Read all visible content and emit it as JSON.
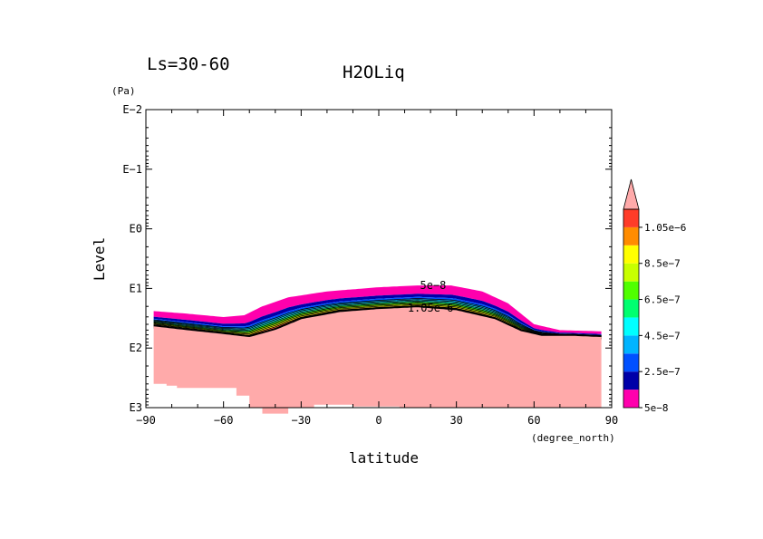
{
  "chart_data": {
    "type": "contour",
    "title": "H2OLiq",
    "season_label": "Ls=30-60",
    "xlabel": "latitude",
    "xunits": "(degree_north)",
    "ylabel": "Level",
    "yunits": "(Pa)",
    "xlim": [
      -90,
      90
    ],
    "ylim_log10": [
      -2,
      3
    ],
    "x_ticks": [
      -90,
      -60,
      -30,
      0,
      30,
      60,
      90
    ],
    "x_tick_labels": [
      "−90",
      "−60",
      "−30",
      "0",
      "30",
      "60",
      "90"
    ],
    "y_ticks_log10": [
      -2,
      -1,
      0,
      1,
      2,
      3
    ],
    "y_tick_labels": [
      "E−2",
      "E−1",
      "E0",
      "E1",
      "E2",
      "E3"
    ],
    "colorbar": {
      "levels": [
        5e-08,
        1.5e-07,
        2.5e-07,
        3.5e-07,
        4.5e-07,
        5.5e-07,
        6.5e-07,
        7.5e-07,
        8.5e-07,
        9.5e-07,
        1.05e-06
      ],
      "colors": [
        "#ff00ad",
        "#0000a8",
        "#0050ff",
        "#00b4ff",
        "#00ffff",
        "#00ff70",
        "#50ff00",
        "#c8ff00",
        "#ffff00",
        "#ff8c00",
        "#ff3c28"
      ],
      "over_color": "#ffaaaa",
      "labels": [
        "5e−8",
        "2.5e−7",
        "4.5e−7",
        "6.5e−7",
        "8.5e−7",
        "1.05e−6"
      ],
      "label_levels": [
        5e-08,
        2.5e-07,
        4.5e-07,
        6.5e-07,
        8.5e-07,
        1.05e-06
      ]
    },
    "cloud_top_log10": [
      [
        -87,
        1.38
      ],
      [
        -75,
        1.42
      ],
      [
        -60,
        1.48
      ],
      [
        -52,
        1.45
      ],
      [
        -45,
        1.3
      ],
      [
        -35,
        1.15
      ],
      [
        -20,
        1.05
      ],
      [
        0,
        0.98
      ],
      [
        15,
        0.95
      ],
      [
        28,
        0.95
      ],
      [
        40,
        1.05
      ],
      [
        50,
        1.25
      ],
      [
        60,
        1.6
      ],
      [
        70,
        1.7
      ],
      [
        86,
        1.72
      ]
    ],
    "cloud_base_log10": [
      [
        -87,
        1.65
      ],
      [
        -75,
        1.72
      ],
      [
        -60,
        1.8
      ],
      [
        -50,
        1.85
      ],
      [
        -40,
        1.72
      ],
      [
        -30,
        1.55
      ],
      [
        -15,
        1.42
      ],
      [
        0,
        1.38
      ],
      [
        15,
        1.35
      ],
      [
        30,
        1.4
      ],
      [
        45,
        1.55
      ],
      [
        55,
        1.75
      ],
      [
        63,
        1.82
      ],
      [
        75,
        1.82
      ],
      [
        86,
        1.85
      ]
    ],
    "surface_mask_top_log10": [
      [
        -87,
        1.62
      ],
      [
        -75,
        1.68
      ],
      [
        -60,
        1.75
      ],
      [
        -50,
        1.8
      ],
      [
        -40,
        1.68
      ],
      [
        -30,
        1.5
      ],
      [
        -15,
        1.38
      ],
      [
        0,
        1.33
      ],
      [
        15,
        1.3
      ],
      [
        30,
        1.35
      ],
      [
        45,
        1.5
      ],
      [
        55,
        1.7
      ],
      [
        63,
        1.78
      ],
      [
        75,
        1.78
      ],
      [
        86,
        1.8
      ]
    ],
    "surface_mask_bottom_log10": [
      [
        -87,
        2.6
      ],
      [
        -82,
        2.6
      ],
      [
        -82,
        2.63
      ],
      [
        -78,
        2.63
      ],
      [
        -78,
        2.67
      ],
      [
        -55,
        2.67
      ],
      [
        -55,
        2.8
      ],
      [
        -50,
        2.8
      ],
      [
        -50,
        3.0
      ],
      [
        -45,
        3.0
      ],
      [
        -45,
        3.1
      ],
      [
        -35,
        3.1
      ],
      [
        -35,
        3.0
      ],
      [
        -25,
        3.0
      ],
      [
        -25,
        2.95
      ],
      [
        -10,
        2.95
      ],
      [
        -10,
        2.98
      ],
      [
        8,
        2.98
      ],
      [
        8,
        3.0
      ],
      [
        86,
        3.0
      ]
    ],
    "contour_labels": [
      {
        "text": "5e−8",
        "lat": 21,
        "log10p": 0.95
      },
      {
        "text": "1.05e−6",
        "lat": 20,
        "log10p": 1.33
      }
    ]
  }
}
